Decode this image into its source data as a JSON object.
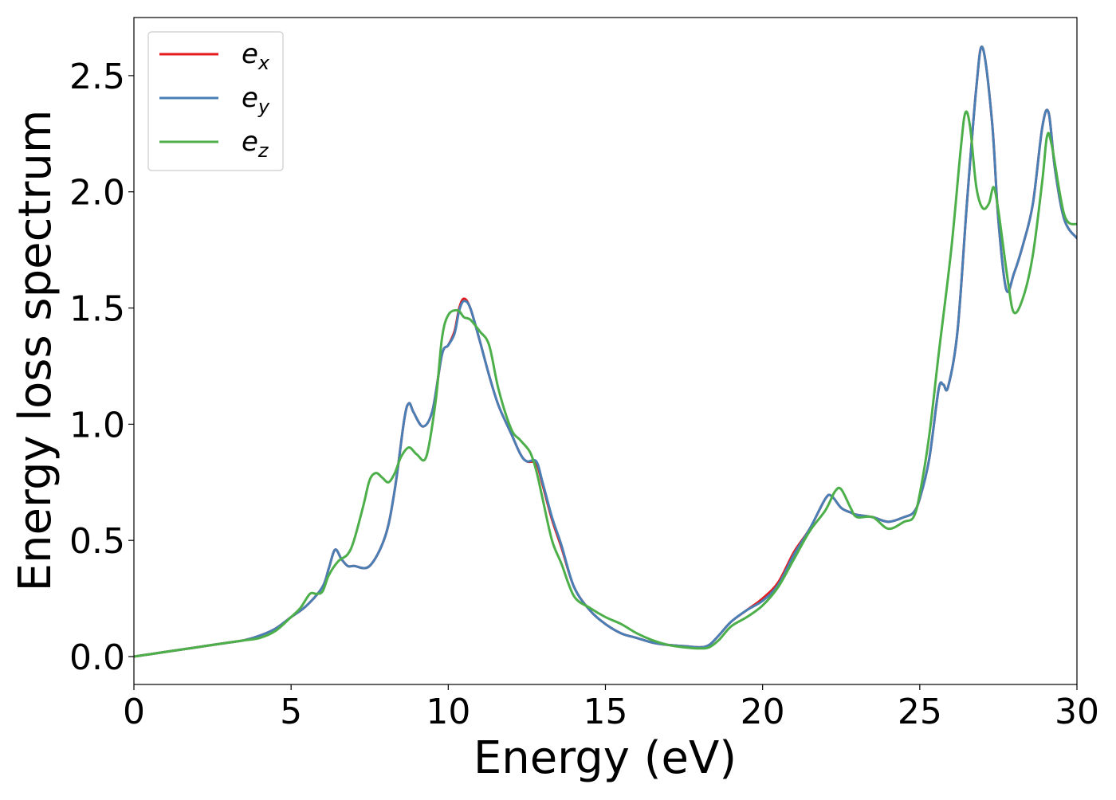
{
  "chart_data": {
    "type": "line",
    "title": "",
    "xlabel": "Energy (eV)",
    "ylabel": "Energy loss spectrum",
    "xlim": [
      0,
      30
    ],
    "ylim": [
      -0.12,
      2.75
    ],
    "xticks": [
      0,
      5,
      10,
      15,
      20,
      25,
      30
    ],
    "xtick_labels": [
      "0",
      "5",
      "10",
      "15",
      "20",
      "25",
      "30"
    ],
    "yticks": [
      0.0,
      0.5,
      1.0,
      1.5,
      2.0,
      2.5
    ],
    "ytick_labels": [
      "0.0",
      "0.5",
      "1.0",
      "1.5",
      "2.0",
      "2.5"
    ],
    "grid": false,
    "legend_position": "top-left",
    "series": [
      {
        "name": "e",
        "subscript": "x",
        "color": "#e41a1c",
        "x": [
          0,
          0.5,
          1,
          1.5,
          2,
          2.5,
          3,
          3.5,
          4,
          4.5,
          5,
          5.5,
          6,
          6.2,
          6.4,
          6.6,
          6.8,
          7,
          7.5,
          8,
          8.3,
          8.6,
          8.75,
          8.9,
          9.2,
          9.5,
          9.8,
          10,
          10.2,
          10.35,
          10.5,
          10.7,
          11,
          11.3,
          11.6,
          12,
          12.3,
          12.5,
          12.8,
          13,
          13.3,
          13.6,
          14,
          14.5,
          15,
          15.5,
          16,
          16.5,
          17,
          17.5,
          18,
          18.3,
          18.6,
          19,
          19.5,
          20,
          20.5,
          21,
          21.5,
          22,
          22.2,
          22.5,
          22.8,
          23,
          23.5,
          24,
          24.5,
          24.8,
          25,
          25.3,
          25.6,
          25.75,
          25.9,
          26.2,
          26.5,
          26.8,
          27,
          27.3,
          27.5,
          27.75,
          28,
          28.3,
          28.6,
          28.9,
          29.1,
          29.3,
          29.6,
          30
        ],
        "values": [
          0,
          0.01,
          0.02,
          0.03,
          0.04,
          0.05,
          0.06,
          0.07,
          0.09,
          0.12,
          0.17,
          0.22,
          0.3,
          0.38,
          0.46,
          0.42,
          0.39,
          0.39,
          0.39,
          0.52,
          0.72,
          1.02,
          1.09,
          1.05,
          0.99,
          1.06,
          1.3,
          1.34,
          1.4,
          1.5,
          1.54,
          1.5,
          1.36,
          1.21,
          1.08,
          0.96,
          0.87,
          0.84,
          0.83,
          0.74,
          0.59,
          0.47,
          0.3,
          0.2,
          0.14,
          0.1,
          0.08,
          0.06,
          0.05,
          0.045,
          0.04,
          0.05,
          0.09,
          0.15,
          0.2,
          0.25,
          0.32,
          0.45,
          0.55,
          0.68,
          0.69,
          0.64,
          0.62,
          0.61,
          0.6,
          0.58,
          0.6,
          0.62,
          0.68,
          0.85,
          1.15,
          1.17,
          1.16,
          1.4,
          1.95,
          2.45,
          2.62,
          2.3,
          1.88,
          1.58,
          1.65,
          1.78,
          1.95,
          2.28,
          2.34,
          2.1,
          1.88,
          1.8
        ]
      },
      {
        "name": "e",
        "subscript": "y",
        "color": "#4a7fb6",
        "x": [
          0,
          0.5,
          1,
          1.5,
          2,
          2.5,
          3,
          3.5,
          4,
          4.5,
          5,
          5.5,
          6,
          6.2,
          6.4,
          6.6,
          6.8,
          7,
          7.5,
          8,
          8.3,
          8.6,
          8.75,
          8.9,
          9.2,
          9.5,
          9.8,
          10,
          10.2,
          10.35,
          10.5,
          10.7,
          11,
          11.3,
          11.6,
          12,
          12.3,
          12.5,
          12.8,
          13,
          13.3,
          13.6,
          14,
          14.5,
          15,
          15.5,
          16,
          16.5,
          17,
          17.5,
          18,
          18.3,
          18.6,
          19,
          19.5,
          20,
          20.5,
          21,
          21.5,
          22,
          22.2,
          22.5,
          22.8,
          23,
          23.5,
          24,
          24.5,
          24.8,
          25,
          25.3,
          25.6,
          25.75,
          25.9,
          26.2,
          26.5,
          26.8,
          27,
          27.3,
          27.5,
          27.75,
          28,
          28.3,
          28.6,
          28.9,
          29.1,
          29.3,
          29.6,
          30
        ],
        "values": [
          0,
          0.01,
          0.02,
          0.03,
          0.04,
          0.05,
          0.06,
          0.07,
          0.09,
          0.12,
          0.17,
          0.22,
          0.3,
          0.38,
          0.46,
          0.42,
          0.39,
          0.39,
          0.39,
          0.52,
          0.72,
          1.02,
          1.09,
          1.05,
          0.99,
          1.06,
          1.3,
          1.34,
          1.39,
          1.49,
          1.53,
          1.5,
          1.36,
          1.21,
          1.08,
          0.96,
          0.87,
          0.84,
          0.84,
          0.75,
          0.6,
          0.48,
          0.3,
          0.2,
          0.14,
          0.1,
          0.08,
          0.06,
          0.05,
          0.045,
          0.04,
          0.05,
          0.09,
          0.15,
          0.2,
          0.24,
          0.31,
          0.44,
          0.55,
          0.68,
          0.69,
          0.64,
          0.62,
          0.61,
          0.6,
          0.58,
          0.6,
          0.62,
          0.68,
          0.85,
          1.15,
          1.17,
          1.16,
          1.4,
          1.95,
          2.45,
          2.62,
          2.3,
          1.88,
          1.58,
          1.65,
          1.78,
          1.95,
          2.28,
          2.34,
          2.1,
          1.88,
          1.8
        ]
      },
      {
        "name": "e",
        "subscript": "z",
        "color": "#4daf4a",
        "x": [
          0,
          0.5,
          1,
          1.5,
          2,
          2.5,
          3,
          3.5,
          4,
          4.5,
          5,
          5.3,
          5.6,
          5.8,
          6,
          6.2,
          6.5,
          6.8,
          7,
          7.3,
          7.5,
          7.7,
          7.9,
          8.1,
          8.3,
          8.5,
          8.75,
          9,
          9.3,
          9.6,
          9.8,
          10,
          10.3,
          10.5,
          10.7,
          11,
          11.3,
          11.6,
          12,
          12.3,
          12.6,
          12.8,
          13,
          13.3,
          13.6,
          14,
          14.5,
          15,
          15.5,
          16,
          16.5,
          17,
          17.5,
          18,
          18.3,
          18.6,
          19,
          19.5,
          20,
          20.5,
          21,
          21.5,
          22,
          22.3,
          22.5,
          22.8,
          23,
          23.5,
          24,
          24.5,
          24.8,
          25,
          25.3,
          25.6,
          26,
          26.3,
          26.45,
          26.6,
          26.8,
          27,
          27.2,
          27.35,
          27.5,
          27.8,
          28,
          28.3,
          28.6,
          28.9,
          29.05,
          29.2,
          29.6,
          30
        ],
        "values": [
          0,
          0.01,
          0.02,
          0.03,
          0.04,
          0.05,
          0.06,
          0.07,
          0.08,
          0.11,
          0.17,
          0.21,
          0.27,
          0.27,
          0.28,
          0.35,
          0.41,
          0.44,
          0.5,
          0.65,
          0.76,
          0.79,
          0.77,
          0.75,
          0.79,
          0.86,
          0.9,
          0.87,
          0.86,
          1.1,
          1.37,
          1.47,
          1.49,
          1.46,
          1.45,
          1.4,
          1.34,
          1.15,
          0.98,
          0.93,
          0.88,
          0.8,
          0.68,
          0.5,
          0.4,
          0.26,
          0.21,
          0.17,
          0.14,
          0.1,
          0.07,
          0.05,
          0.04,
          0.035,
          0.04,
          0.07,
          0.13,
          0.17,
          0.22,
          0.3,
          0.42,
          0.54,
          0.63,
          0.71,
          0.72,
          0.64,
          0.6,
          0.6,
          0.55,
          0.58,
          0.6,
          0.7,
          0.95,
          1.3,
          1.75,
          2.18,
          2.34,
          2.28,
          2.02,
          1.93,
          1.95,
          2.02,
          1.92,
          1.62,
          1.48,
          1.55,
          1.73,
          2.05,
          2.24,
          2.2,
          1.9,
          1.86
        ]
      }
    ]
  }
}
